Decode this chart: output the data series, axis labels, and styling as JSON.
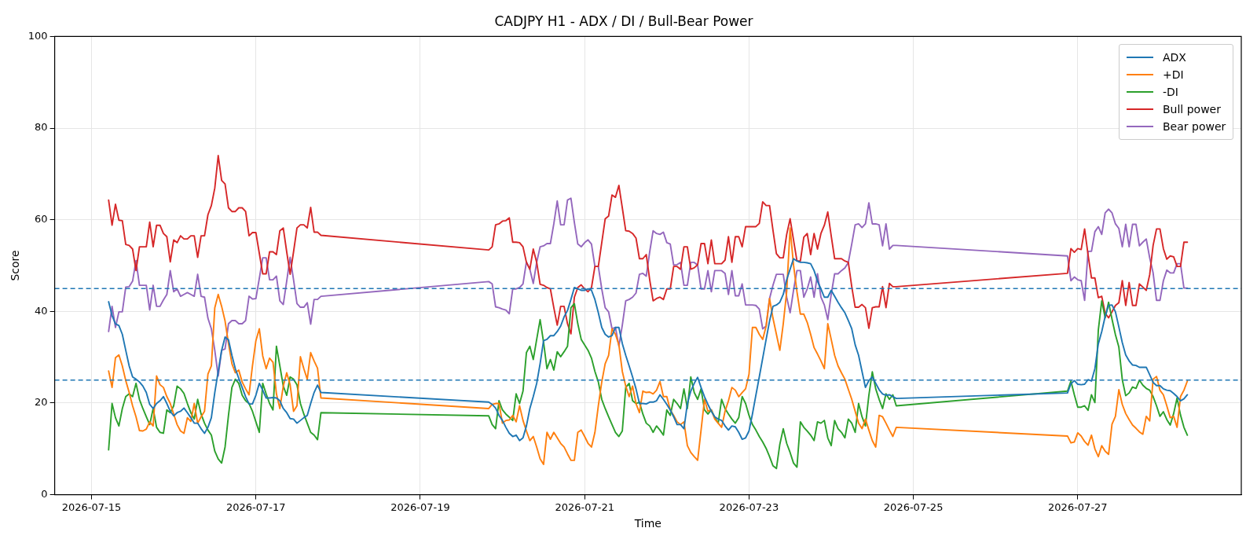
{
  "chart_data": {
    "type": "line",
    "title": "CADJPY H1 - ADX / DI / Bull-Bear Power",
    "xlabel": "Time",
    "ylabel": "Score",
    "x": [
      "2026-07-15T05:00",
      "2026-07-15T06:00",
      "2026-07-15T07:00",
      "2026-07-15T08:00",
      "2026-07-15T09:00",
      "2026-07-15T10:00",
      "2026-07-15T11:00",
      "2026-07-15T12:00",
      "2026-07-15T13:00",
      "2026-07-15T14:00",
      "2026-07-15T15:00",
      "2026-07-15T16:00",
      "2026-07-15T17:00",
      "2026-07-15T18:00",
      "2026-07-15T19:00",
      "2026-07-15T20:00",
      "2026-07-15T21:00",
      "2026-07-15T22:00",
      "2026-07-15T23:00",
      "2026-07-16T00:00",
      "2026-07-16T01:00",
      "2026-07-16T02:00",
      "2026-07-16T03:00",
      "2026-07-16T04:00",
      "2026-07-16T05:00",
      "2026-07-16T06:00",
      "2026-07-16T07:00",
      "2026-07-16T08:00",
      "2026-07-16T09:00",
      "2026-07-16T10:00",
      "2026-07-16T11:00",
      "2026-07-16T12:00",
      "2026-07-16T13:00",
      "2026-07-16T14:00",
      "2026-07-16T15:00",
      "2026-07-16T16:00",
      "2026-07-16T17:00",
      "2026-07-16T18:00",
      "2026-07-16T19:00",
      "2026-07-16T20:00",
      "2026-07-16T21:00",
      "2026-07-16T22:00",
      "2026-07-16T23:00",
      "2026-07-17T00:00",
      "2026-07-17T01:00",
      "2026-07-17T02:00",
      "2026-07-17T03:00",
      "2026-07-17T04:00",
      "2026-07-17T05:00",
      "2026-07-17T06:00",
      "2026-07-17T07:00",
      "2026-07-17T08:00",
      "2026-07-17T09:00",
      "2026-07-17T10:00",
      "2026-07-17T11:00",
      "2026-07-17T12:00",
      "2026-07-17T13:00",
      "2026-07-17T14:00",
      "2026-07-17T15:00",
      "2026-07-17T16:00",
      "2026-07-17T17:00",
      "2026-07-17T18:00",
      "2026-07-17T19:00",
      "2026-07-19T20:00",
      "2026-07-19T21:00",
      "2026-07-19T22:00",
      "2026-07-19T23:00",
      "2026-07-20T00:00",
      "2026-07-20T01:00",
      "2026-07-20T02:00",
      "2026-07-20T03:00",
      "2026-07-20T04:00",
      "2026-07-20T05:00",
      "2026-07-20T06:00",
      "2026-07-20T07:00",
      "2026-07-20T08:00",
      "2026-07-20T09:00",
      "2026-07-20T10:00",
      "2026-07-20T11:00",
      "2026-07-20T12:00",
      "2026-07-20T13:00",
      "2026-07-20T14:00",
      "2026-07-20T15:00",
      "2026-07-20T16:00",
      "2026-07-20T17:00",
      "2026-07-20T18:00",
      "2026-07-20T19:00",
      "2026-07-20T20:00",
      "2026-07-20T21:00",
      "2026-07-20T22:00",
      "2026-07-20T23:00",
      "2026-07-21T00:00",
      "2026-07-21T01:00",
      "2026-07-21T02:00",
      "2026-07-21T03:00",
      "2026-07-21T04:00",
      "2026-07-21T05:00",
      "2026-07-21T06:00",
      "2026-07-21T07:00",
      "2026-07-21T08:00",
      "2026-07-21T09:00",
      "2026-07-21T10:00",
      "2026-07-21T11:00",
      "2026-07-21T12:00",
      "2026-07-21T13:00",
      "2026-07-21T14:00",
      "2026-07-21T15:00",
      "2026-07-21T16:00",
      "2026-07-21T17:00",
      "2026-07-21T18:00",
      "2026-07-21T19:00",
      "2026-07-21T20:00",
      "2026-07-21T21:00",
      "2026-07-21T22:00",
      "2026-07-21T23:00",
      "2026-07-22T00:00",
      "2026-07-22T01:00",
      "2026-07-22T02:00",
      "2026-07-22T03:00",
      "2026-07-22T04:00",
      "2026-07-22T05:00",
      "2026-07-22T06:00",
      "2026-07-22T07:00",
      "2026-07-22T08:00",
      "2026-07-22T09:00",
      "2026-07-22T10:00",
      "2026-07-22T11:00",
      "2026-07-22T12:00",
      "2026-07-22T13:00",
      "2026-07-22T14:00",
      "2026-07-22T15:00",
      "2026-07-22T16:00",
      "2026-07-22T17:00",
      "2026-07-22T18:00",
      "2026-07-22T19:00",
      "2026-07-22T20:00",
      "2026-07-22T21:00",
      "2026-07-22T22:00",
      "2026-07-22T23:00",
      "2026-07-23T00:00",
      "2026-07-23T01:00",
      "2026-07-23T02:00",
      "2026-07-23T03:00",
      "2026-07-23T04:00",
      "2026-07-23T05:00",
      "2026-07-23T06:00",
      "2026-07-23T07:00",
      "2026-07-23T08:00",
      "2026-07-23T09:00",
      "2026-07-23T10:00",
      "2026-07-23T11:00",
      "2026-07-23T12:00",
      "2026-07-23T13:00",
      "2026-07-23T14:00",
      "2026-07-23T15:00",
      "2026-07-23T16:00",
      "2026-07-23T17:00",
      "2026-07-23T18:00",
      "2026-07-23T19:00",
      "2026-07-23T20:00",
      "2026-07-23T21:00",
      "2026-07-23T22:00",
      "2026-07-23T23:00",
      "2026-07-24T00:00",
      "2026-07-24T01:00",
      "2026-07-24T02:00",
      "2026-07-24T03:00",
      "2026-07-24T04:00",
      "2026-07-24T05:00",
      "2026-07-24T06:00",
      "2026-07-24T07:00",
      "2026-07-24T08:00",
      "2026-07-24T09:00",
      "2026-07-24T10:00",
      "2026-07-24T11:00",
      "2026-07-24T12:00",
      "2026-07-24T13:00",
      "2026-07-24T14:00",
      "2026-07-24T15:00",
      "2026-07-24T16:00",
      "2026-07-24T17:00",
      "2026-07-24T18:00",
      "2026-07-24T19:00",
      "2026-07-26T21:00",
      "2026-07-26T22:00",
      "2026-07-26T23:00",
      "2026-07-27T00:00",
      "2026-07-27T01:00",
      "2026-07-27T02:00",
      "2026-07-27T03:00",
      "2026-07-27T04:00",
      "2026-07-27T05:00",
      "2026-07-27T06:00",
      "2026-07-27T07:00",
      "2026-07-27T08:00",
      "2026-07-27T09:00",
      "2026-07-27T10:00",
      "2026-07-27T11:00",
      "2026-07-27T12:00",
      "2026-07-27T13:00",
      "2026-07-27T14:00",
      "2026-07-27T15:00",
      "2026-07-27T16:00",
      "2026-07-27T17:00",
      "2026-07-27T18:00",
      "2026-07-27T19:00",
      "2026-07-27T20:00",
      "2026-07-27T21:00",
      "2026-07-27T22:00",
      "2026-07-27T23:00",
      "2026-07-28T00:00",
      "2026-07-28T01:00",
      "2026-07-28T02:00",
      "2026-07-28T03:00",
      "2026-07-28T04:00",
      "2026-07-28T05:00",
      "2026-07-28T06:00",
      "2026-07-28T07:00",
      "2026-07-28T08:00"
    ],
    "series": [
      {
        "name": "ADX",
        "color": "#1f77b4",
        "values": [
          42.1,
          39.1,
          37.3,
          36.9,
          35.0,
          31.5,
          28.1,
          25.7,
          25.2,
          24.6,
          23.7,
          22.3,
          19.7,
          18.8,
          19.9,
          20.5,
          21.4,
          19.9,
          18.2,
          17.2,
          17.9,
          18.2,
          18.9,
          17.9,
          16.8,
          15.6,
          15.6,
          14.4,
          13.4,
          14.7,
          16.8,
          22.3,
          26.9,
          31.5,
          34.4,
          33.8,
          30.4,
          27.5,
          25.4,
          23.4,
          21.4,
          19.8,
          19.8,
          21.7,
          24.3,
          22.8,
          21.1,
          21.1,
          21.2,
          21.1,
          20.5,
          18.8,
          17.9,
          16.6,
          16.5,
          15.6,
          16.2,
          16.8,
          17.3,
          19.9,
          22.3,
          23.9,
          22.3,
          20.2,
          19.7,
          18.9,
          17.3,
          16.2,
          14.7,
          13.4,
          12.7,
          13.0,
          11.8,
          12.4,
          15.0,
          18.8,
          21.4,
          24.3,
          28.6,
          33.6,
          33.9,
          34.7,
          34.7,
          35.6,
          36.8,
          38.8,
          40.2,
          42.6,
          45.2,
          44.9,
          44.6,
          44.6,
          44.9,
          44.6,
          42.6,
          39.7,
          36.5,
          35.0,
          34.4,
          34.7,
          36.5,
          36.5,
          33.0,
          30.4,
          28.1,
          25.7,
          23.1,
          19.9,
          19.9,
          19.8,
          20.2,
          20.2,
          20.5,
          21.8,
          20.8,
          19.7,
          18.5,
          17.0,
          15.3,
          15.3,
          14.4,
          19.9,
          22.6,
          24.3,
          25.6,
          23.4,
          21.4,
          19.7,
          18.2,
          17.0,
          16.5,
          16.2,
          15.0,
          14.1,
          15.0,
          14.8,
          13.6,
          12.1,
          12.4,
          13.9,
          17.6,
          21.7,
          25.7,
          29.8,
          33.9,
          37.9,
          41.1,
          41.4,
          42.0,
          43.7,
          46.9,
          49.2,
          51.5,
          51.0,
          50.7,
          50.7,
          50.6,
          50.4,
          48.9,
          46.6,
          44.9,
          43.1,
          43.1,
          44.6,
          43.3,
          42.0,
          40.8,
          39.7,
          38.0,
          36.2,
          32.7,
          30.4,
          26.9,
          23.4,
          24.9,
          25.7,
          24.3,
          22.9,
          22.0,
          21.7,
          21.8,
          21.4,
          21.0,
          22.2,
          24.2,
          24.9,
          24.1,
          24.0,
          24.1,
          25.1,
          24.8,
          27.5,
          32.9,
          35.6,
          38.9,
          41.3,
          41.4,
          39.9,
          36.6,
          33.2,
          30.5,
          29.2,
          28.3,
          28.2,
          27.8,
          27.8,
          27.8,
          26.2,
          24.5,
          23.8,
          23.8,
          23.1,
          22.8,
          22.7,
          22.1,
          21.4,
          20.5,
          20.9,
          21.8
        ]
      },
      {
        "name": "+DI",
        "color": "#ff7f0e",
        "values": [
          27.0,
          23.4,
          29.9,
          30.5,
          28.1,
          24.9,
          22.3,
          19.4,
          17.0,
          14.0,
          13.9,
          14.3,
          15.9,
          15.0,
          25.9,
          24.0,
          23.4,
          21.4,
          19.9,
          17.6,
          15.3,
          13.9,
          13.4,
          16.8,
          16.0,
          19.9,
          15.6,
          17.0,
          18.2,
          26.3,
          28.1,
          40.8,
          43.7,
          41.1,
          37.9,
          33.0,
          28.6,
          26.6,
          27.2,
          24.6,
          23.1,
          21.8,
          28.1,
          33.6,
          36.2,
          30.3,
          27.5,
          29.8,
          28.9,
          22.0,
          18.8,
          23.7,
          26.6,
          24.0,
          18.2,
          19.4,
          30.1,
          27.5,
          25.2,
          31.0,
          29.2,
          27.6,
          21.1,
          18.8,
          19.7,
          19.9,
          19.9,
          15.6,
          16.2,
          16.3,
          17.3,
          15.9,
          19.4,
          16.2,
          13.9,
          11.8,
          12.7,
          10.4,
          7.8,
          6.6,
          13.6,
          12.1,
          13.6,
          12.4,
          11.2,
          10.4,
          8.9,
          7.5,
          7.5,
          13.6,
          14.1,
          12.7,
          11.2,
          10.4,
          13.6,
          19.4,
          24.6,
          28.6,
          30.4,
          36.2,
          35.0,
          32.7,
          26.9,
          23.7,
          21.4,
          23.7,
          19.9,
          17.9,
          22.6,
          22.3,
          22.4,
          22.0,
          22.8,
          24.7,
          21.4,
          21.4,
          18.5,
          17.3,
          15.9,
          15.3,
          15.9,
          10.7,
          9.2,
          8.3,
          7.5,
          14.1,
          20.8,
          18.2,
          18.5,
          16.5,
          15.6,
          14.7,
          18.2,
          20.5,
          23.4,
          22.8,
          21.4,
          22.3,
          23.1,
          26.3,
          36.5,
          36.5,
          35.0,
          33.9,
          36.8,
          42.8,
          38.5,
          35.0,
          31.5,
          37.3,
          44.3,
          58.2,
          50.1,
          44.3,
          39.4,
          39.4,
          37.6,
          35.0,
          32.1,
          30.7,
          29.2,
          27.5,
          37.3,
          33.9,
          30.4,
          28.1,
          26.6,
          25.2,
          23.0,
          20.8,
          18.2,
          15.6,
          14.4,
          16.5,
          14.1,
          11.8,
          10.4,
          17.3,
          17.0,
          15.6,
          14.1,
          12.7,
          14.7,
          12.8,
          11.3,
          11.5,
          13.5,
          12.8,
          11.6,
          10.8,
          13.0,
          10.0,
          8.3,
          10.7,
          9.5,
          8.8,
          15.4,
          17.1,
          22.9,
          19.7,
          17.7,
          16.4,
          15.2,
          14.5,
          13.7,
          13.2,
          17.1,
          16.1,
          25.2,
          25.8,
          22.8,
          21.8,
          19.4,
          16.8,
          17.1,
          14.7,
          21.4,
          22.8,
          24.8
        ]
      },
      {
        "name": "-DI",
        "color": "#2ca02c",
        "values": [
          9.8,
          19.9,
          16.8,
          15.0,
          18.8,
          21.4,
          22.0,
          21.4,
          24.3,
          20.8,
          18.8,
          17.0,
          15.3,
          18.8,
          14.7,
          13.6,
          13.4,
          18.5,
          17.9,
          19.4,
          23.7,
          23.1,
          22.1,
          19.9,
          17.9,
          16.5,
          20.8,
          17.6,
          15.6,
          14.1,
          13.0,
          9.5,
          7.8,
          6.9,
          10.4,
          17.3,
          23.4,
          25.2,
          24.3,
          21.7,
          20.5,
          19.9,
          18.2,
          15.9,
          13.6,
          24.3,
          22.0,
          19.9,
          18.5,
          32.4,
          28.1,
          23.7,
          21.7,
          25.7,
          25.2,
          24.0,
          19.9,
          17.6,
          15.6,
          13.6,
          13.0,
          12.0,
          17.9,
          17.2,
          15.3,
          14.4,
          20.5,
          18.5,
          17.6,
          16.9,
          16.2,
          22.0,
          19.9,
          22.6,
          31.0,
          32.4,
          29.5,
          33.9,
          38.2,
          33.3,
          27.5,
          29.5,
          27.2,
          31.2,
          30.1,
          31.2,
          32.4,
          40.8,
          41.7,
          37.3,
          33.9,
          32.7,
          31.5,
          29.8,
          26.9,
          24.6,
          20.8,
          18.8,
          17.0,
          15.3,
          13.6,
          12.7,
          13.9,
          23.4,
          24.3,
          20.5,
          19.9,
          20.2,
          17.6,
          15.6,
          15.0,
          13.6,
          15.0,
          14.1,
          13.0,
          18.5,
          17.3,
          20.8,
          19.9,
          18.8,
          23.1,
          18.8,
          25.7,
          22.3,
          20.8,
          23.1,
          18.5,
          17.6,
          18.5,
          16.8,
          15.6,
          20.8,
          18.8,
          17.6,
          16.5,
          15.6,
          16.8,
          21.4,
          19.9,
          17.3,
          15.3,
          14.1,
          12.7,
          11.5,
          10.1,
          8.3,
          6.3,
          5.7,
          11.0,
          14.4,
          11.2,
          9.2,
          6.9,
          6.0,
          15.9,
          14.7,
          13.9,
          13.0,
          11.8,
          15.9,
          15.6,
          16.2,
          12.4,
          10.7,
          16.2,
          14.4,
          13.6,
          12.4,
          16.5,
          15.6,
          13.6,
          19.9,
          17.0,
          15.0,
          21.7,
          26.8,
          23.1,
          20.8,
          18.8,
          22.0,
          20.8,
          21.8,
          19.4,
          22.6,
          24.8,
          21.8,
          19.1,
          19.1,
          19.4,
          18.4,
          21.8,
          20.1,
          35.9,
          42.3,
          38.6,
          42.0,
          38.3,
          34.9,
          32.2,
          25.1,
          21.6,
          22.2,
          23.5,
          23.2,
          25.0,
          23.9,
          23.2,
          22.8,
          21.4,
          19.4,
          17.1,
          18.1,
          16.4,
          15.2,
          17.7,
          21.1,
          17.4,
          14.7,
          13.0
        ]
      },
      {
        "name": "Bull power",
        "color": "#d62728",
        "values": [
          64.3,
          58.8,
          63.4,
          59.9,
          59.8,
          54.6,
          54.4,
          53.6,
          48.9,
          54.1,
          54.1,
          54.1,
          59.5,
          54.1,
          58.8,
          58.8,
          57.0,
          56.3,
          50.8,
          55.6,
          55.0,
          56.5,
          55.8,
          55.8,
          56.5,
          56.5,
          51.8,
          56.5,
          56.5,
          61.1,
          63.1,
          66.9,
          74.0,
          68.6,
          67.8,
          62.6,
          61.8,
          61.8,
          62.6,
          62.6,
          61.8,
          56.5,
          57.2,
          57.2,
          52.7,
          48.2,
          48.2,
          53.0,
          53.0,
          52.4,
          57.6,
          58.2,
          53.0,
          48.1,
          53.0,
          58.2,
          58.9,
          58.9,
          58.2,
          62.7,
          57.3,
          57.3,
          56.6,
          53.4,
          54.1,
          58.9,
          59.1,
          59.7,
          59.8,
          60.4,
          55.1,
          55.1,
          55.0,
          54.1,
          50.7,
          49.2,
          53.6,
          50.7,
          45.9,
          45.7,
          45.2,
          44.9,
          40.8,
          37.0,
          41.1,
          41.1,
          37.3,
          35.1,
          43.1,
          45.2,
          45.8,
          44.9,
          44.3,
          45.2,
          49.8,
          49.8,
          55.0,
          60.2,
          60.8,
          65.4,
          64.9,
          67.5,
          62.6,
          57.6,
          57.5,
          57.0,
          56.0,
          51.5,
          51.5,
          52.4,
          46.9,
          42.3,
          42.8,
          43.1,
          42.6,
          44.9,
          44.9,
          49.8,
          49.8,
          49.2,
          54.1,
          54.1,
          49.2,
          49.5,
          50.2,
          54.8,
          54.8,
          50.4,
          55.6,
          50.4,
          50.4,
          50.4,
          51.2,
          56.3,
          50.7,
          56.3,
          56.3,
          54.1,
          58.5,
          58.5,
          58.5,
          58.5,
          59.2,
          63.9,
          63.1,
          63.1,
          57.7,
          52.6,
          51.7,
          51.7,
          56.8,
          60.2,
          55.6,
          51.0,
          51.0,
          56.2,
          57.0,
          52.4,
          57.0,
          53.6,
          57.0,
          58.8,
          61.7,
          56.5,
          51.5,
          51.5,
          51.5,
          51.0,
          50.7,
          45.4,
          40.9,
          40.9,
          41.5,
          40.8,
          36.3,
          40.8,
          41.0,
          41.0,
          45.4,
          40.8,
          46.1,
          45.4,
          45.4,
          48.3,
          53.7,
          52.9,
          53.7,
          53.5,
          58.0,
          52.4,
          47.3,
          47.3,
          43.0,
          43.3,
          39.6,
          38.6,
          39.9,
          41.3,
          41.9,
          46.7,
          41.3,
          46.3,
          41.3,
          41.3,
          46.0,
          45.3,
          44.6,
          48.0,
          54.4,
          58.0,
          58.0,
          53.7,
          51.4,
          52.1,
          51.9,
          49.8,
          49.8,
          55.1,
          55.1
        ]
      },
      {
        "name": "Bear power",
        "color": "#9467bd",
        "values": [
          35.6,
          41.1,
          36.5,
          39.9,
          39.9,
          45.3,
          45.4,
          46.6,
          51.1,
          45.7,
          45.7,
          45.7,
          40.3,
          45.7,
          41.1,
          41.1,
          42.5,
          43.7,
          48.9,
          44.3,
          44.9,
          43.3,
          43.7,
          44.1,
          43.7,
          43.3,
          48.1,
          43.3,
          43.1,
          38.5,
          36.2,
          31.5,
          25.9,
          31.5,
          31.8,
          37.3,
          38.0,
          38.0,
          37.3,
          37.3,
          38.0,
          43.3,
          42.7,
          42.8,
          47.2,
          51.7,
          51.7,
          46.9,
          46.9,
          47.7,
          42.3,
          41.5,
          46.6,
          51.8,
          46.9,
          41.7,
          40.9,
          40.9,
          41.9,
          37.2,
          42.6,
          42.6,
          43.3,
          46.5,
          46.0,
          41.0,
          40.8,
          40.5,
          40.3,
          39.5,
          44.9,
          44.9,
          45.2,
          46.0,
          50.8,
          49.2,
          46.1,
          50.7,
          54.1,
          54.3,
          54.8,
          54.8,
          59.1,
          64.1,
          58.9,
          58.9,
          64.3,
          64.7,
          59.4,
          54.7,
          54.1,
          55.0,
          55.6,
          54.7,
          49.8,
          49.8,
          44.9,
          40.8,
          39.9,
          36.2,
          36.5,
          32.4,
          37.0,
          42.3,
          42.6,
          43.1,
          44.0,
          48.1,
          48.3,
          47.7,
          53.0,
          57.6,
          57.0,
          56.8,
          57.3,
          55.0,
          54.7,
          50.1,
          50.2,
          50.7,
          45.7,
          45.7,
          50.7,
          50.7,
          50.1,
          44.9,
          44.9,
          48.9,
          44.3,
          48.9,
          48.9,
          48.9,
          48.3,
          43.7,
          48.9,
          43.4,
          43.4,
          46.0,
          41.4,
          41.4,
          41.4,
          41.3,
          40.5,
          36.2,
          36.8,
          42.8,
          45.7,
          48.1,
          48.1,
          48.1,
          43.1,
          39.7,
          44.6,
          48.9,
          48.9,
          43.1,
          44.9,
          47.5,
          43.1,
          48.2,
          43.1,
          41.4,
          38.2,
          43.7,
          48.2,
          48.2,
          48.9,
          49.5,
          50.7,
          54.7,
          58.9,
          59.1,
          58.3,
          59.1,
          63.7,
          59.1,
          59.1,
          58.9,
          54.3,
          59.1,
          53.6,
          54.4,
          54.4,
          52.1,
          46.7,
          47.5,
          46.9,
          46.7,
          42.4,
          53.1,
          53.1,
          57.4,
          58.5,
          56.8,
          61.5,
          62.3,
          61.5,
          59.1,
          58.1,
          54.1,
          59.0,
          54.1,
          59.0,
          59.0,
          54.3,
          55.1,
          55.8,
          51.7,
          48.4,
          42.4,
          42.4,
          46.7,
          49.0,
          48.4,
          48.4,
          50.4,
          50.4,
          45.1,
          45.1
        ]
      }
    ],
    "ref_lines": [
      {
        "axis": "y",
        "value": 45,
        "color": "#1f77b4",
        "line_style": "dashed"
      },
      {
        "axis": "y",
        "value": 25,
        "color": "#1f77b4",
        "line_style": "dashed"
      }
    ],
    "xlim": [
      "2026-07-14T13:15",
      "2026-07-28T23:45"
    ],
    "xticks": [
      {
        "value": "2026-07-15",
        "label": "2026-07-15"
      },
      {
        "value": "2026-07-17",
        "label": "2026-07-17"
      },
      {
        "value": "2026-07-19",
        "label": "2026-07-19"
      },
      {
        "value": "2026-07-21",
        "label": "2026-07-21"
      },
      {
        "value": "2026-07-23",
        "label": "2026-07-23"
      },
      {
        "value": "2026-07-25",
        "label": "2026-07-25"
      },
      {
        "value": "2026-07-27",
        "label": "2026-07-27"
      }
    ],
    "ylim": [
      0,
      100
    ],
    "yticks": [
      0,
      20,
      40,
      60,
      80,
      100
    ],
    "grid": true,
    "legend": "top right",
    "marker": "none",
    "line_style": "solid"
  }
}
